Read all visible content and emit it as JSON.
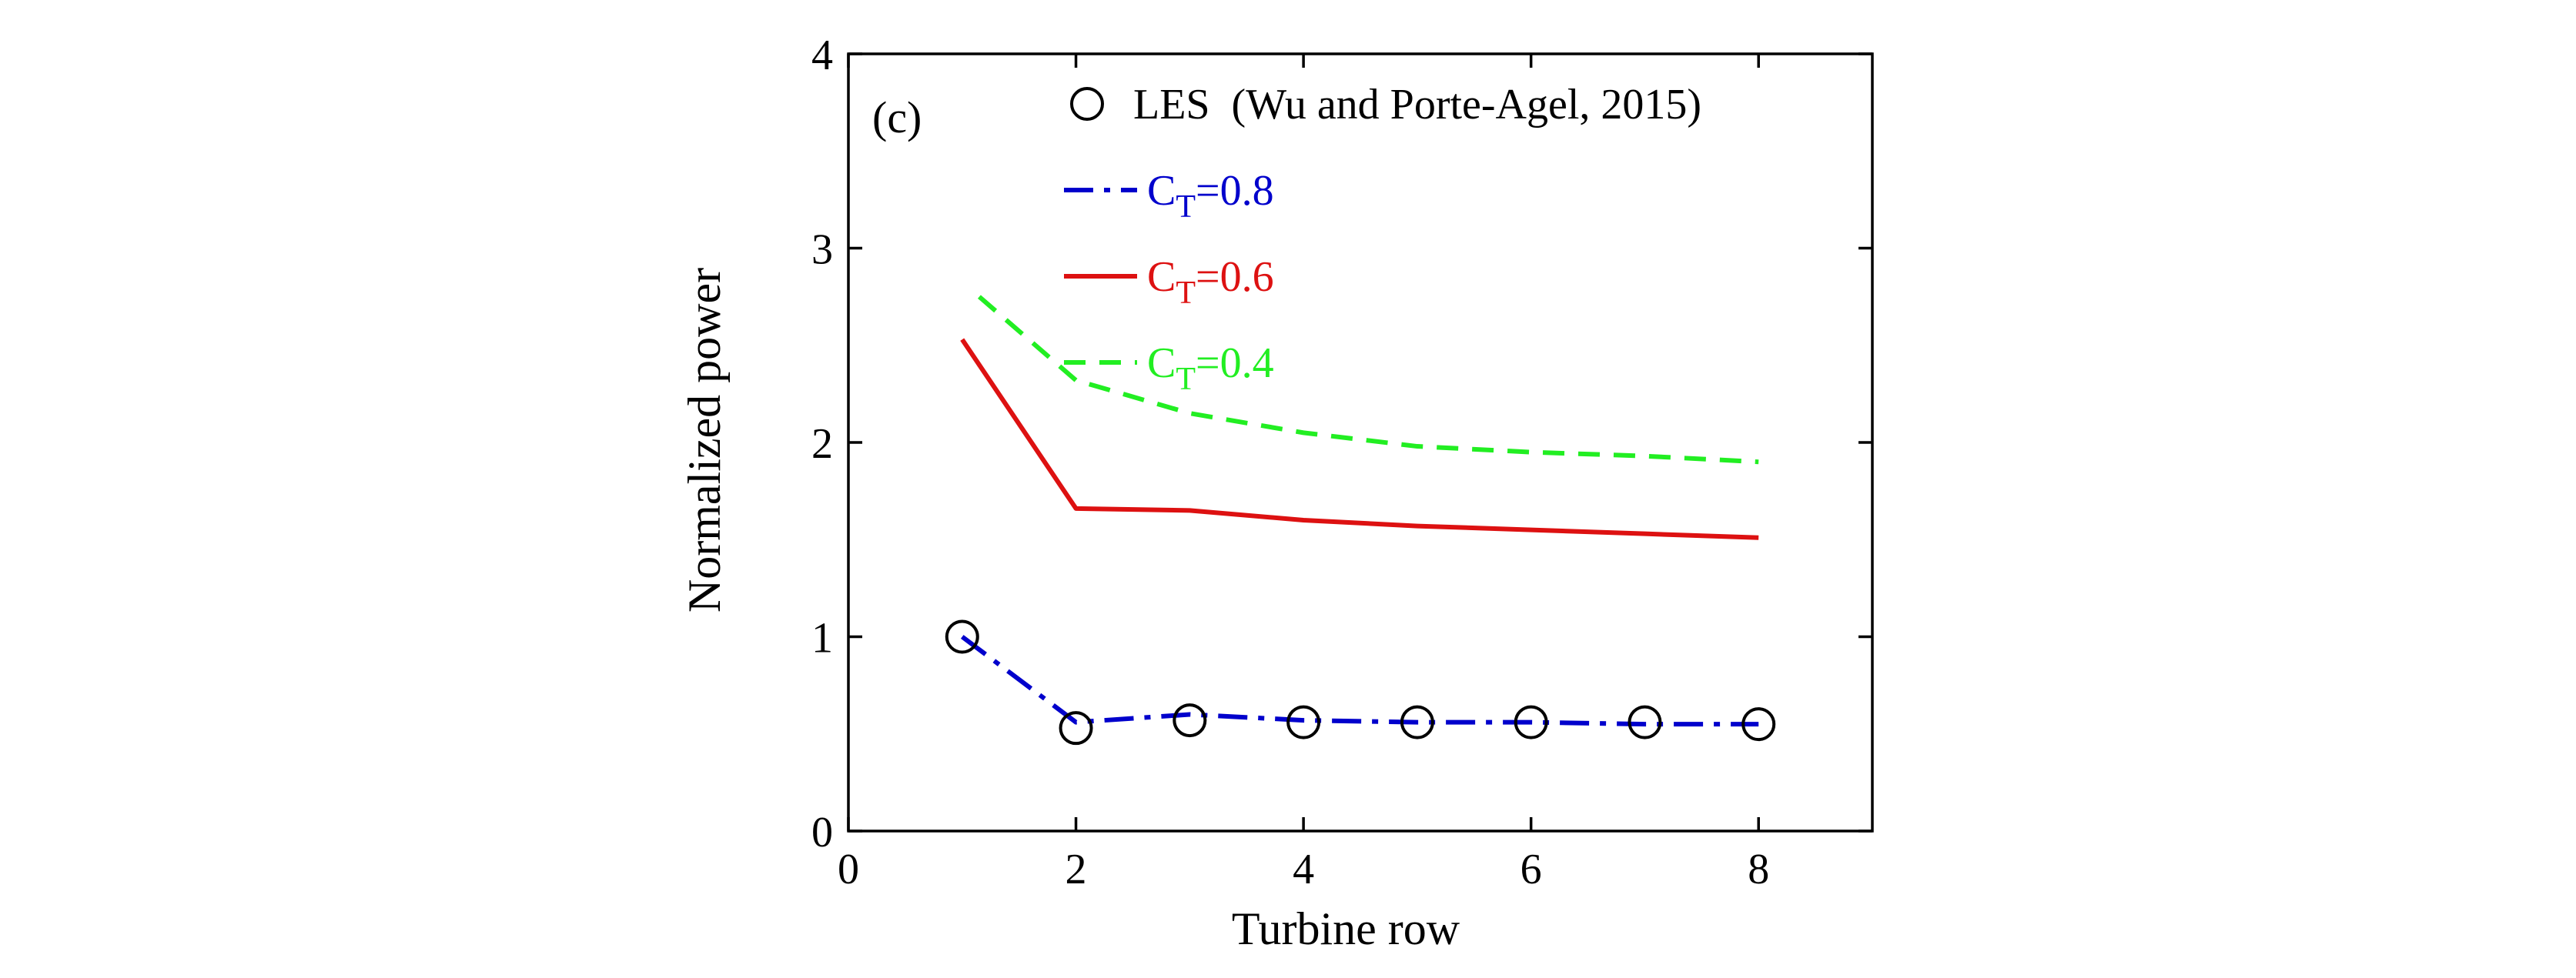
{
  "chart_data": {
    "type": "line",
    "panel_label": "(c)",
    "xlabel": "Turbine row",
    "ylabel": "Normalized power",
    "xlim": [
      0,
      9
    ],
    "ylim": [
      0,
      4
    ],
    "x_ticks": [
      0,
      2,
      4,
      6,
      8
    ],
    "y_ticks": [
      0,
      1,
      2,
      3,
      4
    ],
    "grid": false,
    "legend_position": "top-right",
    "series": [
      {
        "name": "LES  (Wu and Porte-Agel, 2015)",
        "style": "markers",
        "marker": "circle",
        "color": "#000000",
        "x": [
          1,
          2,
          3,
          4,
          5,
          6,
          7,
          8
        ],
        "y": [
          1.0,
          0.53,
          0.57,
          0.56,
          0.56,
          0.56,
          0.56,
          0.55
        ]
      },
      {
        "name_base": "C",
        "name_sub": "T",
        "name_rest": "=0.8",
        "style": "dash-dot",
        "color": "#0000cc",
        "x": [
          1,
          2,
          3,
          4,
          5,
          6,
          7,
          8
        ],
        "y": [
          1.0,
          0.56,
          0.6,
          0.57,
          0.56,
          0.56,
          0.55,
          0.55
        ]
      },
      {
        "name_base": "C",
        "name_sub": "T",
        "name_rest": "=0.6",
        "style": "solid",
        "color": "#dd1111",
        "x": [
          1,
          2,
          3,
          4,
          5,
          6,
          7,
          8
        ],
        "y": [
          2.53,
          1.66,
          1.65,
          1.6,
          1.57,
          1.55,
          1.53,
          1.51
        ]
      },
      {
        "name_base": "C",
        "name_sub": "T",
        "name_rest": "=0.4",
        "style": "dashed",
        "color": "#22ee22",
        "x": [
          1.15,
          2,
          3,
          4,
          5,
          6,
          7,
          8
        ],
        "y": [
          2.75,
          2.32,
          2.15,
          2.05,
          1.98,
          1.95,
          1.93,
          1.9
        ]
      }
    ]
  }
}
